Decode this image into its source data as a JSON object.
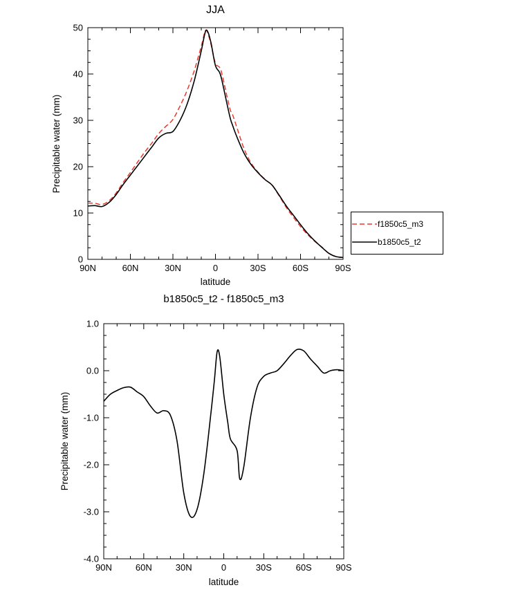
{
  "page": {
    "background": "#ffffff"
  },
  "chart_data": [
    {
      "type": "line",
      "title": "JJA",
      "xlabel": "latitude",
      "ylabel": "Precipitable water (mm)",
      "xlim": [
        90,
        -90
      ],
      "ylim": [
        0,
        50
      ],
      "grid": false,
      "legend_position": "outside-right-bottom",
      "xticks": {
        "values": [
          90,
          60,
          30,
          0,
          -30,
          -60,
          -90
        ],
        "labels": [
          "90N",
          "60N",
          "30N",
          "0",
          "30S",
          "60S",
          "90S"
        ]
      },
      "yticks": {
        "values": [
          0,
          10,
          20,
          30,
          40,
          50
        ],
        "labels": [
          "0",
          "10",
          "20",
          "30",
          "40",
          "50"
        ]
      },
      "x_minor_step": 10,
      "y_minor_step": 2.5,
      "x": [
        90,
        85,
        80,
        75,
        70,
        65,
        60,
        55,
        50,
        45,
        40,
        35,
        30,
        25,
        20,
        15,
        10,
        7,
        5,
        3,
        0,
        -3,
        -5,
        -10,
        -12,
        -15,
        -20,
        -25,
        -30,
        -35,
        -40,
        -45,
        -50,
        -55,
        -60,
        -65,
        -70,
        -75,
        -80,
        -85,
        -90
      ],
      "series": [
        {
          "name": "f1850c5_m3",
          "color": "#e8392c",
          "dash": "7,4",
          "width": 1.5,
          "values": [
            12.15,
            12.1,
            11.82,
            12.66,
            14.35,
            16.65,
            18.75,
            20.95,
            23.1,
            25.05,
            27.15,
            28.7,
            30.2,
            33.1,
            36.45,
            40.7,
            46.0,
            49.4,
            48.4,
            46.2,
            42.3,
            41.4,
            39.45,
            32.7,
            31.3,
            28.55,
            24.0,
            20.85,
            18.82,
            17.25,
            16.0,
            13.65,
            11.18,
            9.05,
            7.08,
            5.35,
            3.9,
            2.65,
            1.3,
            0.58,
            0.4
          ]
        },
        {
          "name": "b1850c5_t2",
          "color": "#000000",
          "dash": "",
          "width": 1.6,
          "values": [
            11.5,
            11.6,
            11.4,
            12.3,
            14.0,
            16.2,
            18.2,
            20.2,
            22.2,
            24.2,
            26.2,
            27.2,
            27.6,
            30.0,
            33.5,
            38.5,
            45.0,
            49.2,
            48.8,
            46.5,
            41.8,
            40.3,
            38.0,
            31.0,
            29.0,
            26.5,
            23.0,
            20.5,
            18.7,
            17.2,
            16.0,
            13.8,
            11.5,
            9.5,
            7.5,
            5.6,
            4.0,
            2.6,
            1.3,
            0.6,
            0.4
          ]
        }
      ]
    },
    {
      "type": "line",
      "title": "b1850c5_t2 - f1850c5_m3",
      "xlabel": "latitude",
      "ylabel": "Precipitable water (mm)",
      "xlim": [
        90,
        -90
      ],
      "ylim": [
        -4,
        1
      ],
      "grid": false,
      "xticks": {
        "values": [
          90,
          60,
          30,
          0,
          -30,
          -60,
          -90
        ],
        "labels": [
          "90N",
          "60N",
          "30N",
          "0",
          "30S",
          "60S",
          "90S"
        ]
      },
      "yticks": {
        "values": [
          1,
          0,
          -1,
          -2,
          -3,
          -4
        ],
        "labels": [
          "1.0",
          "0.0",
          "-1.0",
          "-2.0",
          "-3.0",
          "-4.0"
        ]
      },
      "x_minor_step": 10,
      "y_minor_step": 0.25,
      "x": [
        90,
        85,
        80,
        75,
        70,
        65,
        60,
        55,
        50,
        45,
        40,
        35,
        30,
        25,
        20,
        15,
        10,
        7,
        5,
        3,
        0,
        -3,
        -5,
        -10,
        -12,
        -15,
        -20,
        -25,
        -30,
        -35,
        -40,
        -45,
        -50,
        -55,
        -60,
        -65,
        -70,
        -75,
        -80,
        -85,
        -90
      ],
      "series": [
        {
          "name": "b1850c5_t2 - f1850c5_m3",
          "color": "#000000",
          "dash": "",
          "width": 1.6,
          "values": [
            -0.65,
            -0.5,
            -0.42,
            -0.36,
            -0.35,
            -0.45,
            -0.55,
            -0.75,
            -0.9,
            -0.85,
            -0.95,
            -1.5,
            -2.6,
            -3.1,
            -2.95,
            -2.2,
            -1.0,
            -0.2,
            0.4,
            0.3,
            -0.5,
            -1.1,
            -1.45,
            -1.7,
            -2.3,
            -2.05,
            -1.0,
            -0.35,
            -0.12,
            -0.05,
            0.0,
            0.15,
            0.32,
            0.45,
            0.42,
            0.25,
            0.1,
            -0.05,
            0.0,
            0.02,
            0.0
          ]
        }
      ]
    }
  ]
}
